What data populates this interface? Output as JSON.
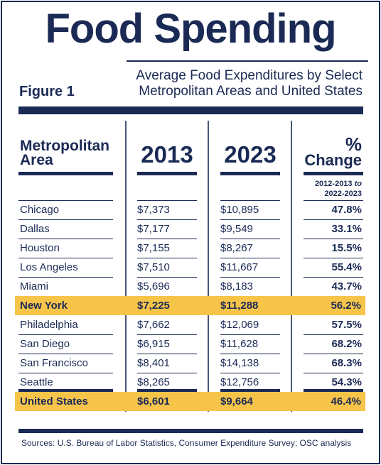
{
  "title": "Food Spending",
  "figure_label": "Figure 1",
  "subtitle_line1": "Average Food Expenditures by Select",
  "subtitle_line2": "Metropolitan Areas and United States",
  "colors": {
    "navy": "#1b2a55",
    "highlight": "#f7c44a"
  },
  "table": {
    "headers": {
      "area_line1": "Metropolitan",
      "area_line2": "Area",
      "year1": "2013",
      "year2": "2023",
      "pct_line1": "%",
      "pct_line2": "Change",
      "range_line1_a": "2012-2013 ",
      "range_line1_b": "to",
      "range_line2": "2022-2023"
    },
    "rows": [
      {
        "area": "Chicago",
        "y2013": "$7,373",
        "y2023": "$10,895",
        "pct": "47.8%"
      },
      {
        "area": "Dallas",
        "y2013": "$7,177",
        "y2023": "$9,549",
        "pct": "33.1%"
      },
      {
        "area": "Houston",
        "y2013": "$7,155",
        "y2023": "$8,267",
        "pct": "15.5%"
      },
      {
        "area": "Los Angeles",
        "y2013": "$7,510",
        "y2023": "$11,667",
        "pct": "55.4%"
      },
      {
        "area": "Miami",
        "y2013": "$5,696",
        "y2023": "$8,183",
        "pct": "43.7%"
      },
      {
        "area": "New York",
        "y2013": "$7,225",
        "y2023": "$11,288",
        "pct": "56.2%",
        "highlight": true
      },
      {
        "area": "Philadelphia",
        "y2013": "$7,662",
        "y2023": "$12,069",
        "pct": "57.5%"
      },
      {
        "area": "San Diego",
        "y2013": "$6,915",
        "y2023": "$11,628",
        "pct": "68.2%"
      },
      {
        "area": "San Francisco",
        "y2013": "$8,401",
        "y2023": "$14,138",
        "pct": "68.3%"
      },
      {
        "area": "Seattle",
        "y2013": "$8,265",
        "y2023": "$12,756",
        "pct": "54.3%"
      },
      {
        "area": "United States",
        "y2013": "$6,601",
        "y2023": "$9,664",
        "pct": "46.4%",
        "highlight": true
      }
    ]
  },
  "source": "Sources: U.S. Bureau of Labor Statistics, Consumer Expenditure Survey; OSC analysis"
}
